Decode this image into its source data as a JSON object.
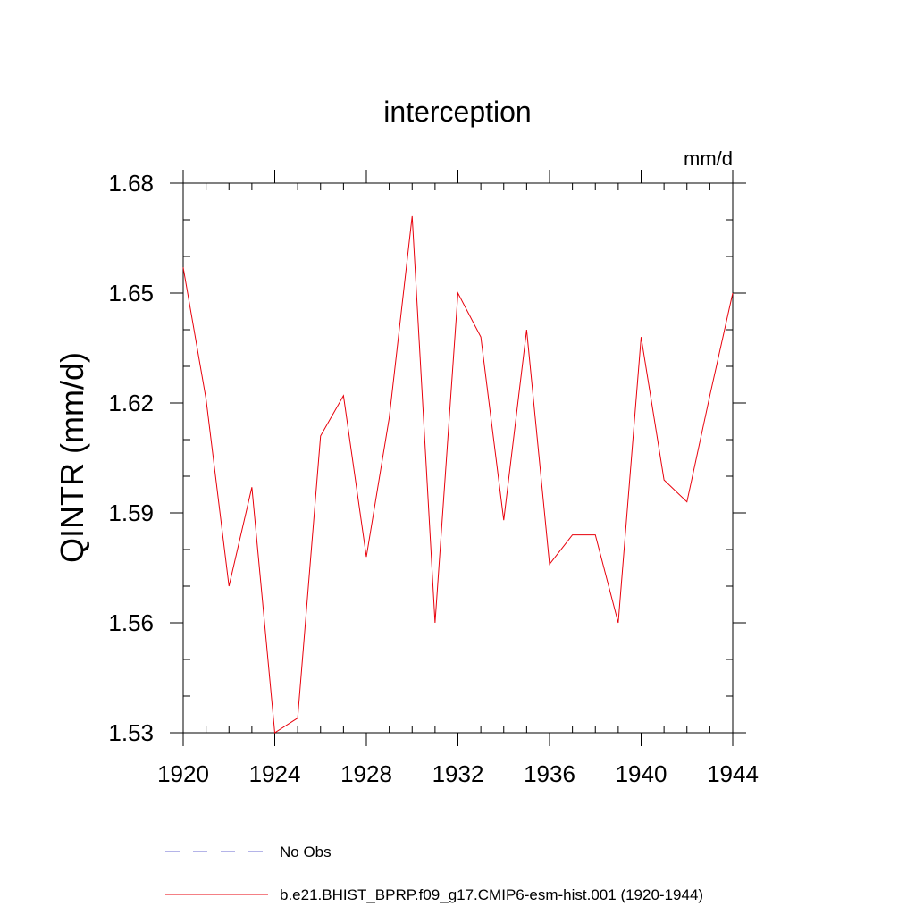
{
  "chart_data": {
    "type": "line",
    "title": "interception",
    "units_label": "mm/d",
    "ylabel": "QINTR  (mm/d)",
    "xlabel": "",
    "xlim": [
      1920,
      1944
    ],
    "ylim": [
      1.53,
      1.68
    ],
    "x_ticks": [
      1920,
      1924,
      1928,
      1932,
      1936,
      1940,
      1944
    ],
    "x_tick_labels": [
      "1920",
      "1924",
      "1928",
      "1932",
      "1936",
      "1940",
      "1944"
    ],
    "y_ticks": [
      1.53,
      1.56,
      1.59,
      1.62,
      1.65,
      1.68
    ],
    "y_tick_labels": [
      "1.53",
      "1.56",
      "1.59",
      "1.62",
      "1.65",
      "1.68"
    ],
    "y_minor_step": 0.01,
    "x_minor_step": 1,
    "grid": false,
    "legend_position": "bottom-left",
    "series": [
      {
        "name": "b.e21.BHIST_BPRP.f09_g17.CMIP6-esm-hist.001 (1920-1944)",
        "color": "#e8000b",
        "dash": "solid",
        "x": [
          1920,
          1921,
          1922,
          1923,
          1924,
          1925,
          1926,
          1927,
          1928,
          1929,
          1930,
          1931,
          1932,
          1933,
          1934,
          1935,
          1936,
          1937,
          1938,
          1939,
          1940,
          1941,
          1942,
          1943,
          1944
        ],
        "values": [
          1.657,
          1.621,
          1.57,
          1.597,
          1.53,
          1.534,
          1.611,
          1.622,
          1.578,
          1.616,
          1.671,
          1.56,
          1.65,
          1.638,
          1.588,
          1.64,
          1.576,
          1.584,
          1.584,
          1.56,
          1.638,
          1.599,
          1.593,
          1.622,
          1.65
        ]
      }
    ],
    "legend": [
      {
        "label": "No Obs",
        "color": "#6a6ad0",
        "dash": "dashed"
      },
      {
        "label": "b.e21.BHIST_BPRP.f09_g17.CMIP6-esm-hist.001 (1920-1944)",
        "color": "#e8000b",
        "dash": "solid"
      }
    ]
  }
}
